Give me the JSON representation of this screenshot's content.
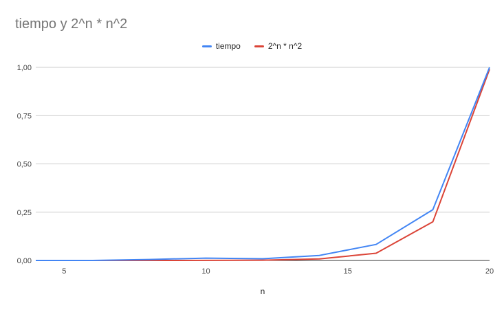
{
  "chart_data": {
    "type": "line",
    "title": "tiempo y 2^n * n^2",
    "xlabel": "n",
    "ylabel": "",
    "xlim": [
      4,
      20
    ],
    "ylim": [
      0,
      1
    ],
    "x_ticks": [
      5,
      10,
      15,
      20
    ],
    "y_ticks": [
      0,
      0.25,
      0.5,
      0.75,
      1.0
    ],
    "y_tick_labels": [
      "0,00",
      "0,25",
      "0,50",
      "0,75",
      "1,00"
    ],
    "grid": "horizontal",
    "legend_position": "top",
    "x": [
      4,
      6,
      8,
      10,
      12,
      14,
      16,
      18,
      20
    ],
    "series": [
      {
        "name": "tiempo",
        "color": "#4285f4",
        "values": [
          0.0,
          0.0,
          0.005,
          0.012,
          0.009,
          0.026,
          0.083,
          0.263,
          1.0
        ]
      },
      {
        "name": "2^n * n^2",
        "color": "#db4437",
        "values": [
          0.0,
          0.0,
          0.0,
          0.0005,
          0.0014,
          0.0077,
          0.0374,
          0.2,
          0.99
        ]
      }
    ]
  }
}
